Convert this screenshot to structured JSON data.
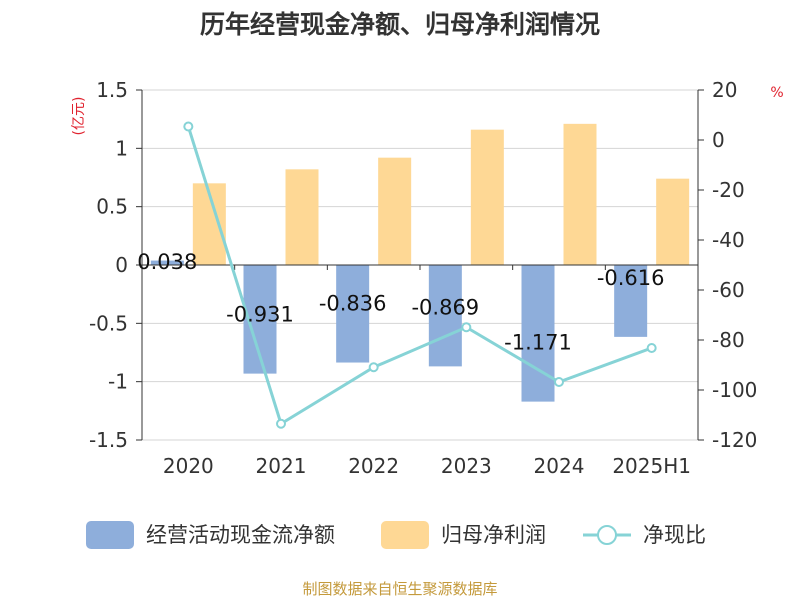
{
  "title": "历年经营现金净额、归母净利润情况",
  "source": "制图数据来自恒生聚源数据库",
  "chart_data": {
    "type": "bar",
    "categories": [
      "2020",
      "2021",
      "2022",
      "2023",
      "2024",
      "2025H1"
    ],
    "series": [
      {
        "name": "经营活动现金流净额",
        "kind": "bar",
        "axis": "left",
        "color": "#8eaedb",
        "values": [
          0.038,
          -0.931,
          -0.836,
          -0.869,
          -1.171,
          -0.616
        ],
        "labels": [
          "0.038",
          "-0.931",
          "-0.836",
          "-0.869",
          "-1.171",
          "-0.616"
        ]
      },
      {
        "name": "归母净利润",
        "kind": "bar",
        "axis": "left",
        "color": "#fed895",
        "values": [
          0.7,
          0.82,
          0.92,
          1.16,
          1.21,
          0.74
        ]
      },
      {
        "name": "净现比",
        "kind": "line",
        "axis": "right",
        "color": "#86d3d6",
        "values": [
          5.4,
          -113.5,
          -90.9,
          -74.9,
          -96.8,
          -83.2
        ]
      }
    ],
    "y_left": {
      "unit": "(亿元)",
      "min": -1.5,
      "max": 1.5,
      "ticks": [
        1.5,
        1,
        0.5,
        0,
        -0.5,
        -1,
        -1.5
      ],
      "tick_labels": [
        "1.5",
        "1",
        "0.5",
        "0",
        "-0.5",
        "-1",
        "-1.5"
      ]
    },
    "y_right": {
      "unit": "%",
      "min": -120,
      "max": 20,
      "ticks": [
        20,
        0,
        -20,
        -40,
        -60,
        -80,
        -100,
        -120
      ],
      "tick_labels": [
        "20",
        "0",
        "-20",
        "-40",
        "-60",
        "-80",
        "-100",
        "-120"
      ]
    },
    "grid": true,
    "legend_position": "bottom"
  }
}
